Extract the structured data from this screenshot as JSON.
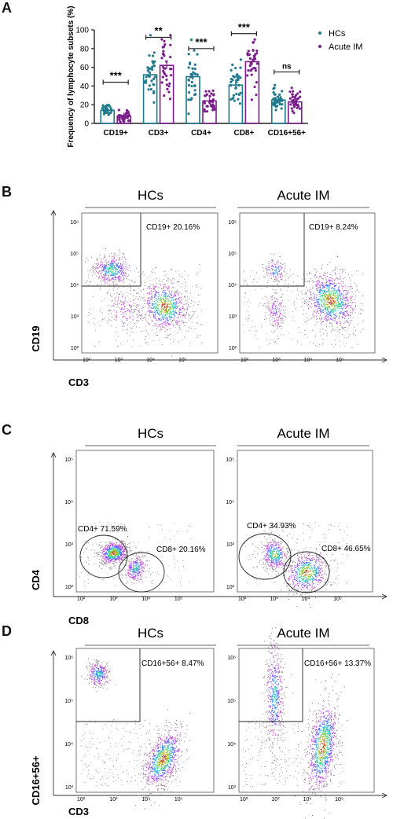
{
  "panels": {
    "a": "A",
    "b": "B",
    "c": "C",
    "d": "D"
  },
  "colors": {
    "hcs": "#1f7a8c",
    "acute": "#7a1f8a",
    "axis": "#222222",
    "gate": "#222222"
  },
  "chart_data": [
    {
      "type": "bar",
      "ylabel": "Frequency of lymphocyte subsets (%)",
      "ylim": [
        0,
        100
      ],
      "yticks": [
        "0",
        "20",
        "40",
        "60",
        "80",
        "100"
      ],
      "categories": [
        "CD19+",
        "CD3+",
        "CD4+",
        "CD8+",
        "CD16+56+"
      ],
      "series": [
        {
          "name": "HCs",
          "values": [
            14,
            52,
            50,
            41,
            25
          ]
        },
        {
          "name": "Acute IM",
          "values": [
            8,
            62,
            24,
            66,
            23
          ]
        }
      ],
      "significance": [
        "***",
        "**",
        "***",
        "***",
        "ns"
      ],
      "legend": "top-right"
    },
    {
      "type": "scatter",
      "panel": "B",
      "groups": [
        "HCs",
        "Acute IM"
      ],
      "xlabel": "CD3",
      "ylabel": "CD19",
      "xticks": [
        "10²",
        "10³",
        "10⁴",
        "10⁵"
      ],
      "yticks": [
        "10²",
        "10³",
        "10⁴",
        "10⁵",
        "10⁶"
      ],
      "gates": [
        {
          "label": "CD19+ 20.16%"
        },
        {
          "label": "CD19+ 8.24%"
        }
      ]
    },
    {
      "type": "scatter",
      "panel": "C",
      "groups": [
        "HCs",
        "Acute IM"
      ],
      "xlabel": "CD8",
      "ylabel": "CD4",
      "xticks": [
        "10²",
        "10³",
        "10⁴",
        "10⁵"
      ],
      "yticks": [
        "10²",
        "10³",
        "10⁴",
        "10⁵"
      ],
      "gates": [
        {
          "label1": "CD4+ 71.59%",
          "label2": "CD8+ 20.16%"
        },
        {
          "label1": "CD4+ 34.93%",
          "label2": "CD8+ 46.65%"
        }
      ]
    },
    {
      "type": "scatter",
      "panel": "D",
      "groups": [
        "HCs",
        "Acute IM"
      ],
      "xlabel": "CD3",
      "ylabel": "CD16+56+",
      "xticks": [
        "10²",
        "10³",
        "10⁴",
        "10⁵"
      ],
      "yticks": [
        "10³",
        "10⁴",
        "10⁵",
        "10⁶"
      ],
      "gates": [
        {
          "label": "CD16+56+ 8.47%"
        },
        {
          "label": "CD16+56+ 13.37%"
        }
      ]
    }
  ]
}
